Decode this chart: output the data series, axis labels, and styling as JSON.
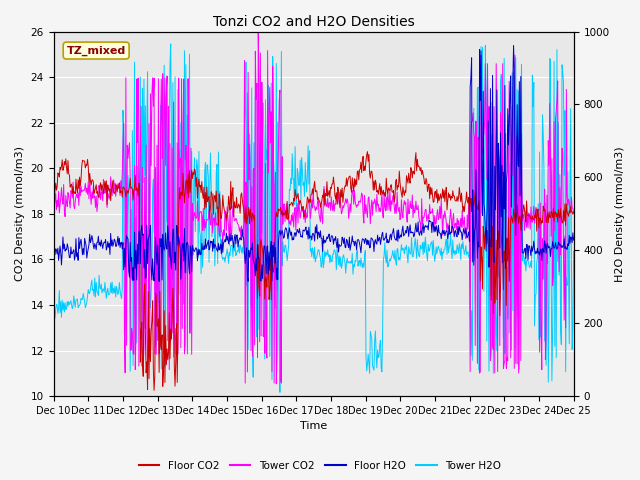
{
  "title": "Tonzi CO2 and H2O Densities",
  "xlabel": "Time",
  "ylabel_left": "CO2 Density (mmol/m3)",
  "ylabel_right": "H2O Density (mmol/m3)",
  "annotation_text": "TZ_mixed",
  "ylim_left": [
    10,
    26
  ],
  "ylim_right": [
    0,
    1000
  ],
  "xtick_labels": [
    "Dec 10",
    "Dec 11",
    "Dec 12",
    "Dec 13",
    "Dec 14",
    "Dec 15",
    "Dec 16",
    "Dec 17",
    "Dec 18",
    "Dec 19",
    "Dec 20",
    "Dec 21",
    "Dec 22",
    "Dec 23",
    "Dec 24",
    "Dec 25"
  ],
  "legend_entries": [
    "Floor CO2",
    "Tower CO2",
    "Floor H2O",
    "Tower H2O"
  ],
  "legend_colors": [
    "#cc0000",
    "#ff00ff",
    "#0000cc",
    "#00ccff"
  ],
  "floor_co2_color": "#cc0000",
  "tower_co2_color": "#ff00ff",
  "floor_h2o_color": "#0000cc",
  "tower_h2o_color": "#00ccff",
  "background_color": "#e8e8e8",
  "grid_color": "#ffffff",
  "n_points": 720,
  "seed": 42
}
